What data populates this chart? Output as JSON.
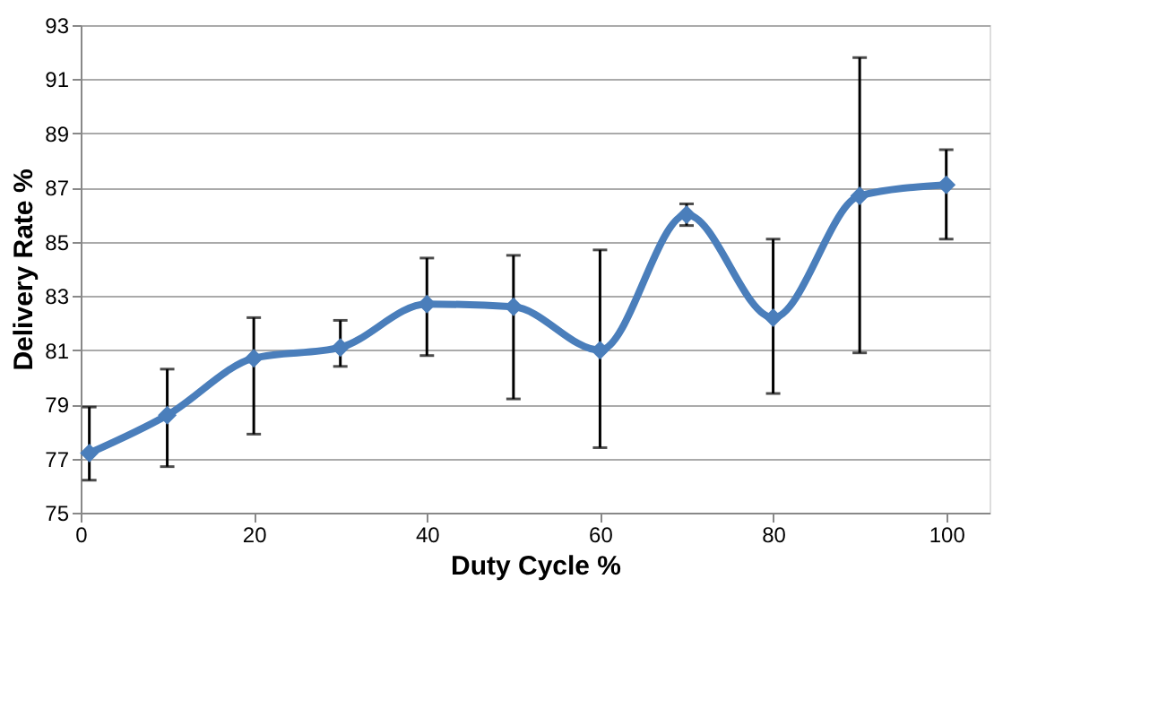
{
  "chart_data": {
    "type": "line",
    "xlabel": "Duty Cycle %",
    "ylabel": "Delivery Rate %",
    "x": [
      1,
      10,
      20,
      30,
      40,
      50,
      60,
      70,
      80,
      90,
      100
    ],
    "series": [
      {
        "color": "#4a7ebb",
        "values": [
          77.2,
          78.6,
          80.7,
          81.1,
          82.7,
          82.6,
          81.0,
          86.0,
          82.2,
          86.7,
          87.1
        ],
        "errors": [
          [
            76.2,
            78.9
          ],
          [
            76.7,
            80.3
          ],
          [
            77.9,
            82.2
          ],
          [
            80.4,
            82.1
          ],
          [
            80.8,
            84.4
          ],
          [
            79.2,
            84.5
          ],
          [
            77.4,
            84.7
          ],
          [
            85.6,
            86.4
          ],
          [
            79.4,
            85.1
          ],
          [
            80.9,
            91.8
          ],
          [
            85.1,
            88.4
          ]
        ]
      }
    ],
    "xlim": [
      0,
      105
    ],
    "xticks": [
      0,
      20,
      40,
      60,
      80,
      100
    ],
    "ylim": [
      75,
      93
    ],
    "yticks": [
      75,
      77,
      79,
      81,
      83,
      85,
      87,
      89,
      91,
      93
    ],
    "grid": "y",
    "marker": "diamond",
    "line_style": "solid"
  }
}
